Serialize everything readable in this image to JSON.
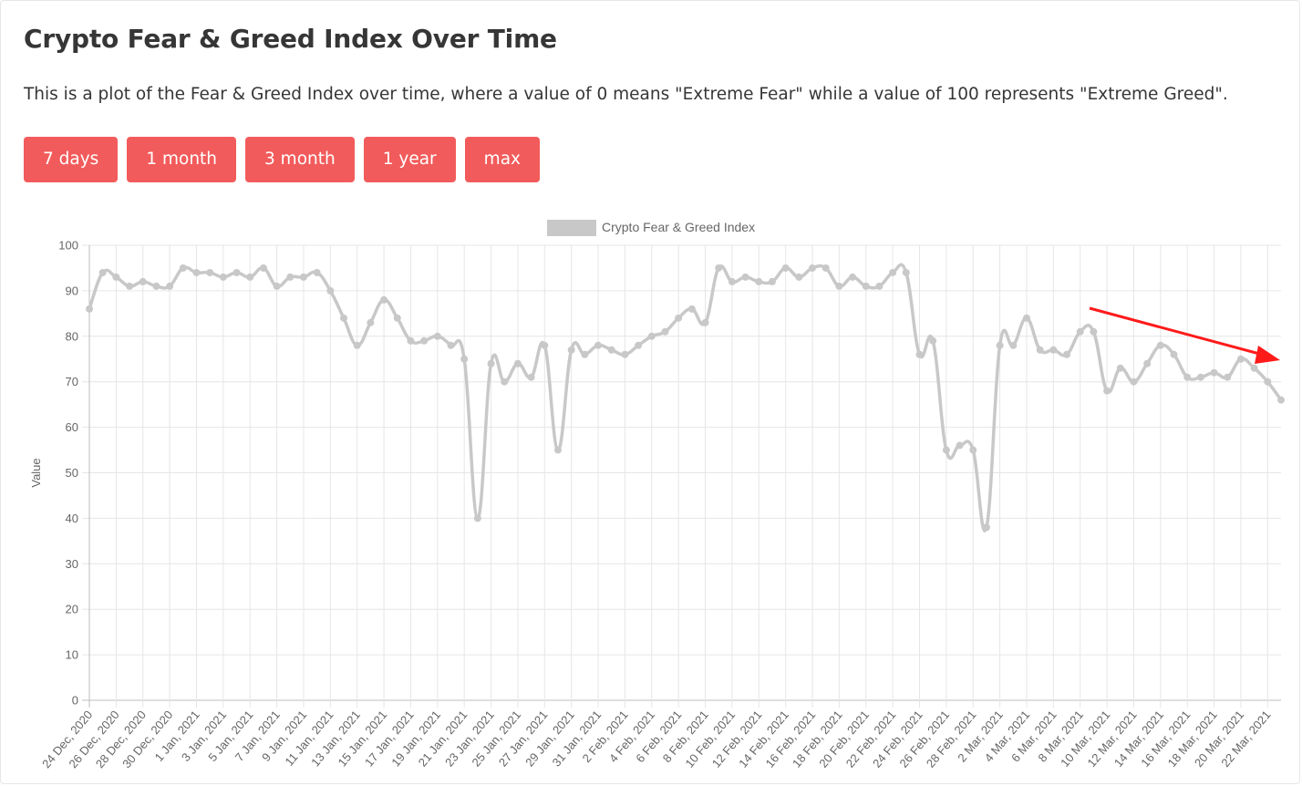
{
  "page": {
    "title": "Crypto Fear & Greed Index Over Time",
    "description": "This is a plot of the Fear & Greed Index over time, where a value of 0 means \"Extreme Fear\" while a value of 100 represents \"Extreme Greed\"."
  },
  "buttons": [
    "7 days",
    "1 month",
    "3 month",
    "1 year",
    "max"
  ],
  "chart_data": {
    "type": "line",
    "legend": "Crypto Fear & Greed Index",
    "legend_position": "top",
    "ylabel": "Value",
    "ylim": [
      0,
      100
    ],
    "yticks": [
      0,
      10,
      20,
      30,
      40,
      50,
      60,
      70,
      80,
      90,
      100
    ],
    "grid": true,
    "line_color": "#c8c8c8",
    "x": [
      "24 Dec, 2020",
      "25 Dec, 2020",
      "26 Dec, 2020",
      "27 Dec, 2020",
      "28 Dec, 2020",
      "29 Dec, 2020",
      "30 Dec, 2020",
      "31 Dec, 2020",
      "1 Jan, 2021",
      "2 Jan, 2021",
      "3 Jan, 2021",
      "4 Jan, 2021",
      "5 Jan, 2021",
      "6 Jan, 2021",
      "7 Jan, 2021",
      "8 Jan, 2021",
      "9 Jan, 2021",
      "10 Jan, 2021",
      "11 Jan, 2021",
      "12 Jan, 2021",
      "13 Jan, 2021",
      "14 Jan, 2021",
      "15 Jan, 2021",
      "16 Jan, 2021",
      "17 Jan, 2021",
      "18 Jan, 2021",
      "19 Jan, 2021",
      "20 Jan, 2021",
      "21 Jan, 2021",
      "22 Jan, 2021",
      "23 Jan, 2021",
      "24 Jan, 2021",
      "25 Jan, 2021",
      "26 Jan, 2021",
      "27 Jan, 2021",
      "28 Jan, 2021",
      "29 Jan, 2021",
      "30 Jan, 2021",
      "31 Jan, 2021",
      "1 Feb, 2021",
      "2 Feb, 2021",
      "3 Feb, 2021",
      "4 Feb, 2021",
      "5 Feb, 2021",
      "6 Feb, 2021",
      "7 Feb, 2021",
      "8 Feb, 2021",
      "9 Feb, 2021",
      "10 Feb, 2021",
      "11 Feb, 2021",
      "12 Feb, 2021",
      "13 Feb, 2021",
      "14 Feb, 2021",
      "15 Feb, 2021",
      "16 Feb, 2021",
      "17 Feb, 2021",
      "18 Feb, 2021",
      "19 Feb, 2021",
      "20 Feb, 2021",
      "21 Feb, 2021",
      "22 Feb, 2021",
      "23 Feb, 2021",
      "24 Feb, 2021",
      "25 Feb, 2021",
      "26 Feb, 2021",
      "27 Feb, 2021",
      "28 Feb, 2021",
      "1 Mar, 2021",
      "2 Mar, 2021",
      "3 Mar, 2021",
      "4 Mar, 2021",
      "5 Mar, 2021",
      "6 Mar, 2021",
      "7 Mar, 2021",
      "8 Mar, 2021",
      "9 Mar, 2021",
      "10 Mar, 2021",
      "11 Mar, 2021",
      "12 Mar, 2021",
      "13 Mar, 2021",
      "14 Mar, 2021",
      "15 Mar, 2021",
      "16 Mar, 2021",
      "17 Mar, 2021",
      "18 Mar, 2021",
      "19 Mar, 2021",
      "20 Mar, 2021",
      "21 Mar, 2021",
      "22 Mar, 2021",
      "23 Mar, 2021"
    ],
    "values": [
      86,
      94,
      93,
      91,
      92,
      91,
      91,
      95,
      94,
      94,
      93,
      94,
      93,
      95,
      91,
      93,
      93,
      94,
      90,
      84,
      78,
      83,
      88,
      84,
      79,
      79,
      80,
      78,
      75,
      40,
      74,
      70,
      74,
      71,
      78,
      55,
      77,
      76,
      78,
      77,
      76,
      78,
      80,
      81,
      84,
      86,
      83,
      95,
      92,
      93,
      92,
      92,
      95,
      93,
      95,
      95,
      91,
      93,
      91,
      91,
      94,
      94,
      76,
      79,
      55,
      56,
      55,
      38,
      78,
      78,
      84,
      77,
      77,
      76,
      81,
      81,
      68,
      73,
      70,
      74,
      78,
      76,
      71,
      71,
      72,
      71,
      75,
      73,
      70,
      66
    ],
    "xtick_labels": [
      "24 Dec, 2020",
      "26 Dec, 2020",
      "28 Dec, 2020",
      "30 Dec, 2020",
      "1 Jan, 2021",
      "3 Jan, 2021",
      "5 Jan, 2021",
      "7 Jan, 2021",
      "9 Jan, 2021",
      "11 Jan, 2021",
      "13 Jan, 2021",
      "15 Jan, 2021",
      "17 Jan, 2021",
      "19 Jan, 2021",
      "21 Jan, 2021",
      "23 Jan, 2021",
      "25 Jan, 2021",
      "27 Jan, 2021",
      "29 Jan, 2021",
      "31 Jan, 2021",
      "2 Feb, 2021",
      "4 Feb, 2021",
      "6 Feb, 2021",
      "8 Feb, 2021",
      "10 Feb, 2021",
      "12 Feb, 2021",
      "14 Feb, 2021",
      "16 Feb, 2021",
      "18 Feb, 2021",
      "20 Feb, 2021",
      "22 Feb, 2021",
      "24 Feb, 2021",
      "26 Feb, 2021",
      "28 Feb, 2021",
      "2 Mar, 2021",
      "4 Mar, 2021",
      "6 Mar, 2021",
      "8 Mar, 2021",
      "10 Mar, 2021",
      "12 Mar, 2021",
      "14 Mar, 2021",
      "16 Mar, 2021",
      "18 Mar, 2021",
      "20 Mar, 2021",
      "22 Mar, 2021"
    ],
    "annotation": {
      "type": "arrow",
      "color": "#ff1a1a",
      "direction": "downward-right trend"
    }
  }
}
